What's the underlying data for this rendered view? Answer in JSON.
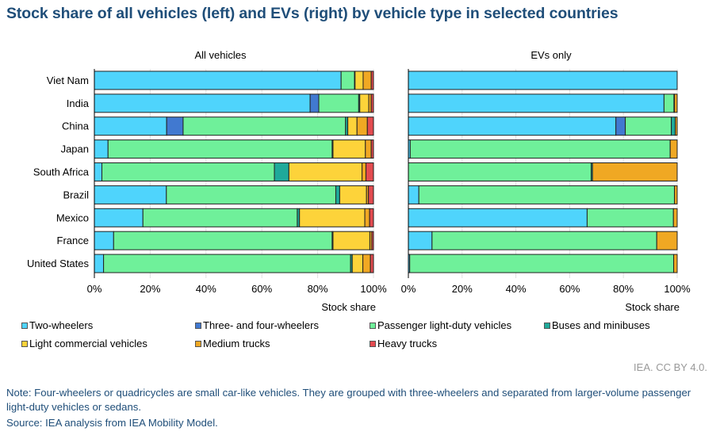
{
  "title": "Stock share of all vehicles (left) and EVs (right) by vehicle type in selected countries",
  "credit": "IEA. CC BY 4.0.",
  "note": "Note: Four-wheelers or quadricycles are small car-like vehicles. They are grouped with three-wheelers and separated from larger-volume passenger light-duty vehicles or sedans.",
  "source": "Source: IEA analysis from IEA Mobility Model.",
  "legend": [
    {
      "label": "Two-wheelers",
      "color": "#4FD4FC"
    },
    {
      "label": "Three- and four-wheelers",
      "color": "#4179D0"
    },
    {
      "label": "Passenger light-duty vehicles",
      "color": "#6FF09A"
    },
    {
      "label": "Buses and minibuses",
      "color": "#1FA99A"
    },
    {
      "label": "Light commercial vehicles",
      "color": "#FDD33A"
    },
    {
      "label": "Medium trucks",
      "color": "#F0A823"
    },
    {
      "label": "Heavy trucks",
      "color": "#E34B4F"
    }
  ],
  "chart_data": [
    {
      "type": "bar",
      "orientation": "horizontal",
      "stacked": true,
      "title": "All vehicles",
      "xlabel": "Stock share",
      "ylabel": "",
      "xlim": [
        0,
        100
      ],
      "xticks": [
        "0%",
        "20%",
        "40%",
        "60%",
        "80%",
        "100%"
      ],
      "grid": true,
      "legend_position": "bottom",
      "categories": [
        "Viet Nam",
        "India",
        "China",
        "Japan",
        "South Africa",
        "Brazil",
        "Mexico",
        "France",
        "United States"
      ],
      "series": [
        {
          "name": "Two-wheelers",
          "values": [
            88.4,
            77.3,
            25.9,
            4.9,
            2.7,
            25.8,
            17.4,
            6.9,
            3.3
          ]
        },
        {
          "name": "Three- and four-wheelers",
          "values": [
            0,
            3.1,
            5.9,
            0,
            0,
            0,
            0,
            0,
            0
          ]
        },
        {
          "name": "Passenger light-duty vehicles",
          "values": [
            4.8,
            14.3,
            58.2,
            80.3,
            61.8,
            60.7,
            55.3,
            78.3,
            88.5
          ]
        },
        {
          "name": "Buses and minibuses",
          "values": [
            0.2,
            0.4,
            0.8,
            0.3,
            5.2,
            1.4,
            0.8,
            0.3,
            0.6
          ]
        },
        {
          "name": "Light commercial vehicles",
          "values": [
            2.9,
            3.2,
            3.3,
            11.6,
            26.2,
            9.6,
            23.4,
            13.2,
            3.8
          ]
        },
        {
          "name": "Medium trucks",
          "values": [
            2.9,
            0.9,
            3.7,
            2.1,
            1.4,
            0.7,
            1.7,
            0.7,
            2.7
          ]
        },
        {
          "name": "Heavy trucks",
          "values": [
            0.8,
            0.8,
            2.2,
            0.8,
            2.7,
            1.8,
            1.4,
            0.6,
            1.1
          ]
        }
      ]
    },
    {
      "type": "bar",
      "orientation": "horizontal",
      "stacked": true,
      "title": "EVs only",
      "xlabel": "Stock share",
      "ylabel": "",
      "xlim": [
        0,
        100
      ],
      "xticks": [
        "0%",
        "20%",
        "40%",
        "60%",
        "80%",
        "100%"
      ],
      "grid": true,
      "legend_position": "bottom",
      "categories": [
        "Viet Nam",
        "India",
        "China",
        "Japan",
        "South Africa",
        "Brazil",
        "Mexico",
        "France",
        "United States"
      ],
      "series": [
        {
          "name": "Two-wheelers",
          "values": [
            100,
            95.1,
            77.2,
            0.7,
            0,
            3.9,
            66.5,
            8.8,
            0.5
          ]
        },
        {
          "name": "Three- and four-wheelers",
          "values": [
            0,
            0,
            3.5,
            0,
            0,
            0,
            0,
            0,
            0
          ]
        },
        {
          "name": "Passenger light-duty vehicles",
          "values": [
            0,
            3.7,
            17.1,
            96.7,
            68.0,
            95.1,
            32.1,
            83.6,
            98.2
          ]
        },
        {
          "name": "Buses and minibuses",
          "values": [
            0,
            0.2,
            1.5,
            0,
            0.5,
            0,
            0,
            0,
            0
          ]
        },
        {
          "name": "Light commercial vehicles",
          "values": [
            0,
            0,
            0,
            0,
            0,
            0,
            0,
            0,
            0
          ]
        },
        {
          "name": "Medium trucks",
          "values": [
            0,
            1.0,
            0.7,
            2.6,
            31.5,
            1.0,
            1.4,
            7.6,
            1.3
          ]
        },
        {
          "name": "Heavy trucks",
          "values": [
            0,
            0,
            0,
            0,
            0,
            0,
            0,
            0,
            0
          ]
        }
      ]
    }
  ]
}
